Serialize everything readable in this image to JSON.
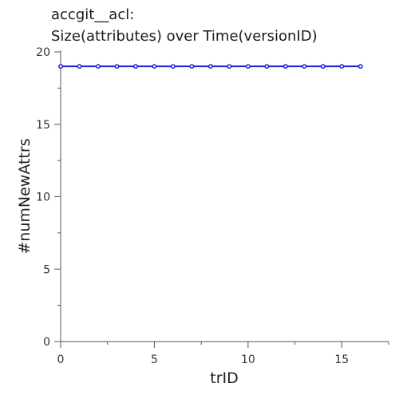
{
  "chart_data": {
    "type": "line",
    "title_line1": "accgit__acl:",
    "title_line2": "Size(attributes) over Time(versionID)",
    "xlabel": "trID",
    "ylabel": "#numNewAttrs",
    "xlim": [
      0,
      17.5
    ],
    "ylim": [
      0,
      20
    ],
    "x_ticks": [
      0,
      5,
      10,
      15
    ],
    "y_ticks": [
      0,
      5,
      10,
      15,
      20
    ],
    "grid": false,
    "series_color": "#1f1fd6",
    "series": [
      {
        "x": [
          0,
          1,
          2,
          3,
          4,
          5,
          6,
          7,
          8,
          9,
          10,
          11,
          12,
          13,
          14,
          15,
          16
        ],
        "y": [
          19,
          19,
          19,
          19,
          19,
          19,
          19,
          19,
          19,
          19,
          19,
          19,
          19,
          19,
          19,
          19,
          19
        ]
      }
    ]
  }
}
